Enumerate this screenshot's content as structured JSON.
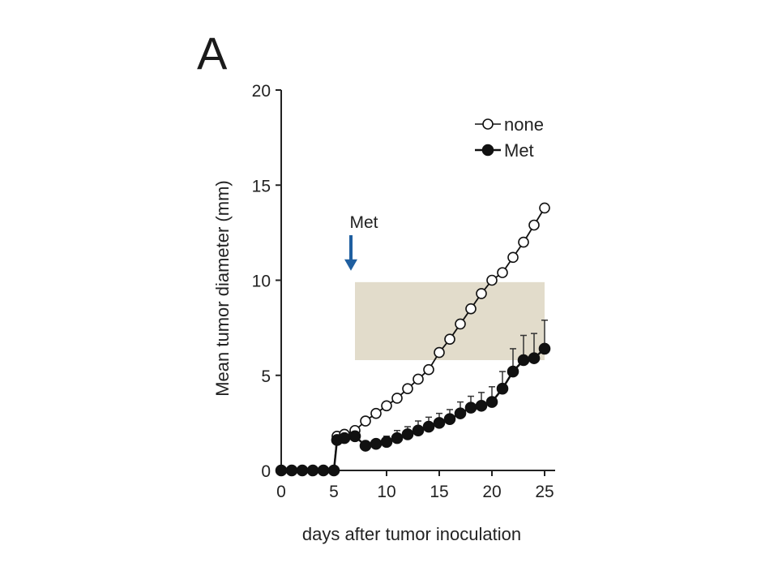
{
  "panel_label": "A",
  "chart_data": {
    "type": "line",
    "title": "",
    "xlabel": "days after tumor inoculation",
    "ylabel": "Mean tumor diameter (mm)",
    "xlim": [
      0,
      26
    ],
    "ylim": [
      0,
      20
    ],
    "xticks": [
      0,
      5,
      10,
      15,
      20,
      25
    ],
    "yticks": [
      0,
      5,
      10,
      15,
      20
    ],
    "legend_position": "top-right",
    "grid": false,
    "highlight_band": {
      "x_range": [
        7,
        25
      ],
      "y_range": [
        5.8,
        9.9
      ],
      "color": "#e2dccb"
    },
    "annotation": {
      "text": "Met",
      "x": 7,
      "arrow_tip_y": 10.5,
      "color": "#1f5fa0"
    },
    "series": [
      {
        "name": "none",
        "marker": "open",
        "x": [
          0,
          1,
          2,
          3,
          4,
          5,
          5.3,
          6,
          7,
          8,
          9,
          10,
          11,
          12,
          13,
          14,
          15,
          16,
          17,
          18,
          19,
          20,
          21,
          22,
          23,
          24,
          25
        ],
        "y": [
          0,
          0,
          0,
          0,
          0,
          0,
          1.8,
          1.9,
          2.1,
          2.6,
          3.0,
          3.4,
          3.8,
          4.3,
          4.8,
          5.3,
          6.2,
          6.9,
          7.7,
          8.5,
          9.3,
          10.0,
          10.4,
          11.2,
          12.0,
          12.9,
          13.8
        ]
      },
      {
        "name": "Met",
        "marker": "filled",
        "x": [
          0,
          1,
          2,
          3,
          4,
          5,
          5.3,
          6,
          7,
          8,
          9,
          10,
          11,
          12,
          13,
          14,
          15,
          16,
          17,
          18,
          19,
          20,
          21,
          22,
          23,
          24,
          25
        ],
        "y": [
          0,
          0,
          0,
          0,
          0,
          0,
          1.6,
          1.7,
          1.8,
          1.3,
          1.4,
          1.5,
          1.7,
          1.9,
          2.1,
          2.3,
          2.5,
          2.7,
          3.0,
          3.3,
          3.4,
          3.6,
          4.3,
          5.2,
          5.8,
          5.9,
          6.4
        ],
        "error": [
          0,
          0,
          0,
          0,
          0,
          0,
          0,
          0,
          0,
          0,
          0.2,
          0.3,
          0.4,
          0.4,
          0.5,
          0.5,
          0.5,
          0.5,
          0.6,
          0.6,
          0.7,
          0.8,
          0.9,
          1.2,
          1.3,
          1.3,
          1.5
        ]
      }
    ]
  }
}
